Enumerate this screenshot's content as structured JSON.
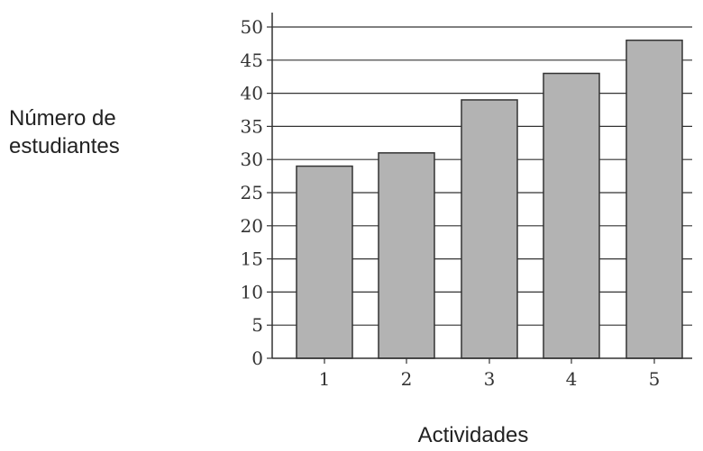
{
  "chart_data": {
    "type": "bar",
    "categories": [
      "1",
      "2",
      "3",
      "4",
      "5"
    ],
    "values": [
      29,
      31,
      39,
      43,
      48
    ],
    "xlabel": "Actividades",
    "ylabel": "Número de estudiantes",
    "ylim": [
      0,
      50
    ],
    "yticks": [
      0,
      5,
      10,
      15,
      20,
      25,
      30,
      35,
      40,
      45,
      50
    ],
    "grid": true,
    "bar_color": "#b3b3b3"
  }
}
